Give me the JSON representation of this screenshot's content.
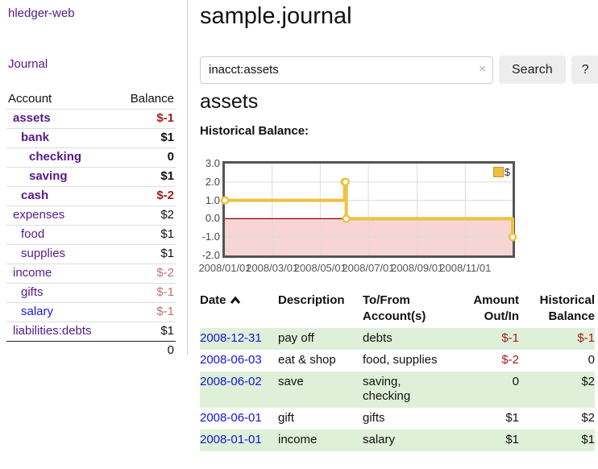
{
  "app": {
    "brand": "hledger-web",
    "nav": {
      "journal": "Journal"
    }
  },
  "colors": {
    "link_purple": "#551a8b",
    "link_blue": "#1a16e0",
    "negative_strong": "#9d1d1d",
    "negative_muted": "#bc7171",
    "row_green": "#dff0d8",
    "chart_gold": "#edc240",
    "chart_negative_fill": "#f7d5d5",
    "zero_line": "#8b0000"
  },
  "sidebar": {
    "headers": {
      "account": "Account",
      "balance": "Balance"
    },
    "accounts": [
      {
        "name": "assets",
        "balance": "$-1"
      },
      {
        "name": "bank",
        "balance": "$1"
      },
      {
        "name": "checking",
        "balance": "0"
      },
      {
        "name": "saving",
        "balance": "$1"
      },
      {
        "name": "cash",
        "balance": "$-2"
      },
      {
        "name": "expenses",
        "balance": "$2"
      },
      {
        "name": "food",
        "balance": "$1"
      },
      {
        "name": "supplies",
        "balance": "$1"
      },
      {
        "name": "income",
        "balance": "$-2"
      },
      {
        "name": "gifts",
        "balance": "$-1"
      },
      {
        "name": "salary",
        "balance": "$-1"
      },
      {
        "name": "liabilities:debts",
        "balance": "$1"
      }
    ],
    "total": "0"
  },
  "main": {
    "title": "sample.journal",
    "search": {
      "value": "inacct:assets",
      "clear_label": "×",
      "button_label": "Search",
      "help_label": "?"
    },
    "account_heading": "assets",
    "section_label": "Historical Balance:"
  },
  "chart_data": {
    "type": "line",
    "title": "Historical Balance:",
    "series": [
      {
        "name": "$",
        "color": "#edc240",
        "style": "step",
        "points": [
          {
            "x": "2008-01-01",
            "y": 1
          },
          {
            "x": "2008-06-01",
            "y": 2
          },
          {
            "x": "2008-06-02",
            "y": 2
          },
          {
            "x": "2008-06-03",
            "y": 0
          },
          {
            "x": "2008-12-31",
            "y": -1
          }
        ]
      }
    ],
    "ylim": [
      -2,
      3
    ],
    "yticks": [
      "3.0",
      "2.0",
      "1.0",
      "0.0",
      "-1.0",
      "-2.0"
    ],
    "xticks": [
      {
        "label": "2008/01/01",
        "date": "2008-01-01"
      },
      {
        "label": "2008/03/01",
        "date": "2008-03-01"
      },
      {
        "label": "2008/05/01",
        "date": "2008-05-01"
      },
      {
        "label": "2008/07/01",
        "date": "2008-07-01"
      },
      {
        "label": "2008/09/01",
        "date": "2008-09-01"
      },
      {
        "label": "2008/11/01",
        "date": "2008-11-01"
      }
    ],
    "xrange": {
      "start": "2008-01-01",
      "end": "2008-12-31"
    },
    "grid": true,
    "legend": {
      "position": "top-right",
      "label": "$"
    },
    "negative_region_shaded": true
  },
  "register": {
    "headers": {
      "date": "Date",
      "description": "Description",
      "accounts": "To/From\nAccount(s)",
      "amount": "Amount\nOut/In",
      "balance": "Historical\nBalance"
    },
    "rows": [
      {
        "date": "2008-12-31",
        "description": "pay off",
        "accounts": "debts",
        "amount": "$-1",
        "balance": "$-1"
      },
      {
        "date": "2008-06-03",
        "description": "eat & shop",
        "accounts": "food, supplies",
        "amount": "$-2",
        "balance": "0"
      },
      {
        "date": "2008-06-02",
        "description": "save",
        "accounts": "saving,\nchecking",
        "amount": "0",
        "balance": "$2"
      },
      {
        "date": "2008-06-01",
        "description": "gift",
        "accounts": "gifts",
        "amount": "$1",
        "balance": "$2"
      },
      {
        "date": "2008-01-01",
        "description": "income",
        "accounts": "salary",
        "amount": "$1",
        "balance": "$1"
      }
    ]
  }
}
